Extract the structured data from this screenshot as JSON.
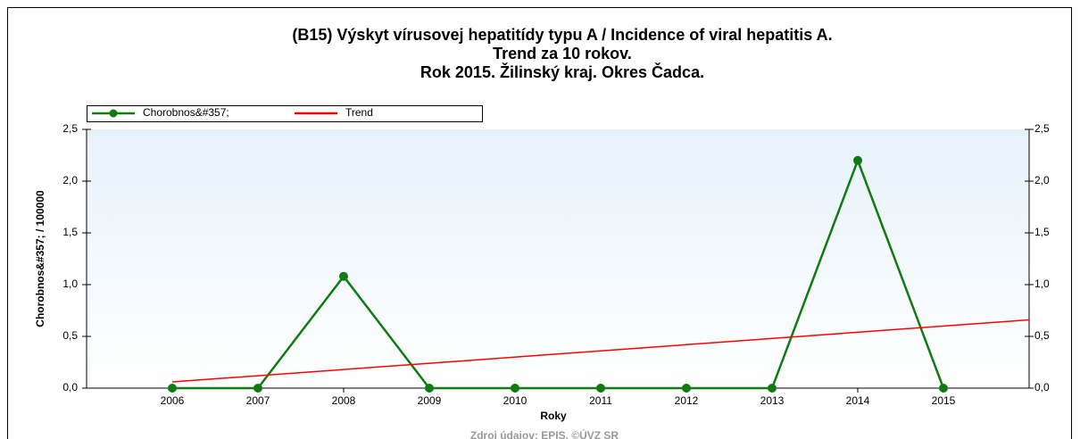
{
  "chart_data": {
    "type": "line",
    "title": [
      "(B15) Výskyt vírusovej hepatitídy typu A / Incidence of viral hepatitis A.",
      "Trend za 10 rokov.",
      "Rok 2015. Žilinský kraj. Okres Čadca."
    ],
    "x_label": "Roky",
    "y_label": "Chorobnos&#357; / 100000",
    "source": "Zdroj údajov: EPIS, ©ÚVZ SR",
    "x": [
      2006,
      2007,
      2008,
      2009,
      2010,
      2011,
      2012,
      2013,
      2014,
      2015
    ],
    "xlim": [
      2005,
      2016
    ],
    "xticks": [
      2006,
      2007,
      2008,
      2009,
      2010,
      2011,
      2012,
      2013,
      2014,
      2015
    ],
    "ylim": [
      0,
      2.5
    ],
    "yticks": [
      {
        "value": 0,
        "label": "0,0"
      },
      {
        "value": 0.5,
        "label": "0,5"
      },
      {
        "value": 1,
        "label": "1,0"
      },
      {
        "value": 1.5,
        "label": "1,5"
      },
      {
        "value": 2,
        "label": "2,0"
      },
      {
        "value": 2.5,
        "label": "2,5"
      }
    ],
    "series": [
      {
        "name": "Chorobnos&#357;",
        "color": "#117a11",
        "values": [
          0,
          0,
          1.08,
          0,
          0,
          0,
          0,
          0,
          2.2,
          0
        ]
      },
      {
        "name": "Trend",
        "color": "#ff0000",
        "x": [
          2006,
          2016
        ],
        "values": [
          0.06,
          0.66
        ]
      }
    ],
    "legend": "top-left"
  }
}
